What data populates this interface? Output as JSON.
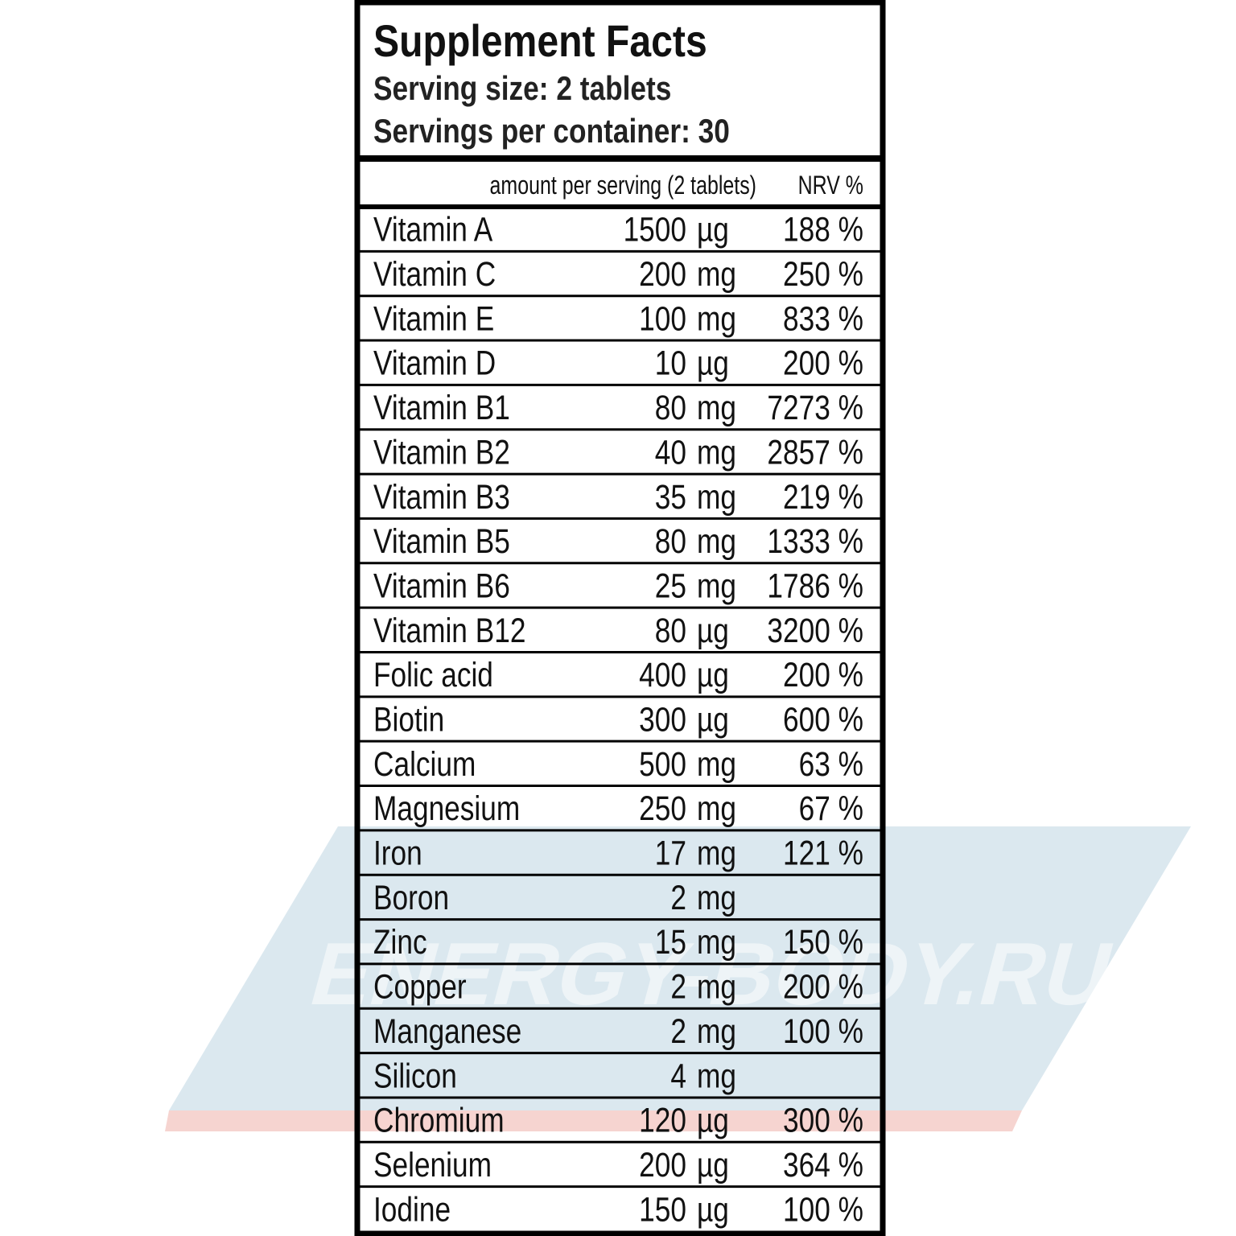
{
  "header": {
    "title": "Supplement Facts",
    "serving_size": "Serving size: 2 tablets",
    "servings_per_container": "Servings per container: 30"
  },
  "table": {
    "columns": [
      "amount per serving (2 tablets)",
      "NRV %"
    ],
    "rows": [
      [
        "Vitamin A",
        "1500",
        "µg",
        "188 %"
      ],
      [
        "Vitamin C",
        "200",
        "mg",
        "250 %"
      ],
      [
        "Vitamin E",
        "100",
        "mg",
        "833 %"
      ],
      [
        "Vitamin D",
        "10",
        "µg",
        "200 %"
      ],
      [
        "Vitamin B1",
        "80",
        "mg",
        "7273 %"
      ],
      [
        "Vitamin B2",
        "40",
        "mg",
        "2857 %"
      ],
      [
        "Vitamin B3",
        "35",
        "mg",
        "219 %"
      ],
      [
        "Vitamin B5",
        "80",
        "mg",
        "1333 %"
      ],
      [
        "Vitamin B6",
        "25",
        "mg",
        "1786 %"
      ],
      [
        "Vitamin B12",
        "80",
        "µg",
        "3200 %"
      ],
      [
        "Folic acid",
        "400",
        "µg",
        "200 %"
      ],
      [
        "Biotin",
        "300",
        "µg",
        "600 %"
      ],
      [
        "Calcium",
        "500",
        "mg",
        "63 %"
      ],
      [
        "Magnesium",
        "250",
        "mg",
        "67 %"
      ],
      [
        "Iron",
        "17",
        "mg",
        "121 %"
      ],
      [
        "Boron",
        "2",
        "mg",
        null
      ],
      [
        "Zinc",
        "15",
        "mg",
        "150 %"
      ],
      [
        "Copper",
        "2",
        "mg",
        "200 %"
      ],
      [
        "Manganese",
        "2",
        "mg",
        "100 %"
      ],
      [
        "Silicon",
        "4",
        "mg",
        null
      ],
      [
        "Chromium",
        "120",
        "µg",
        "300 %"
      ],
      [
        "Selenium",
        "200",
        "µg",
        "364 %"
      ],
      [
        "Iodine",
        "150",
        "µg",
        "100 %"
      ]
    ]
  },
  "watermark": "ENERGY-BODY.RU"
}
